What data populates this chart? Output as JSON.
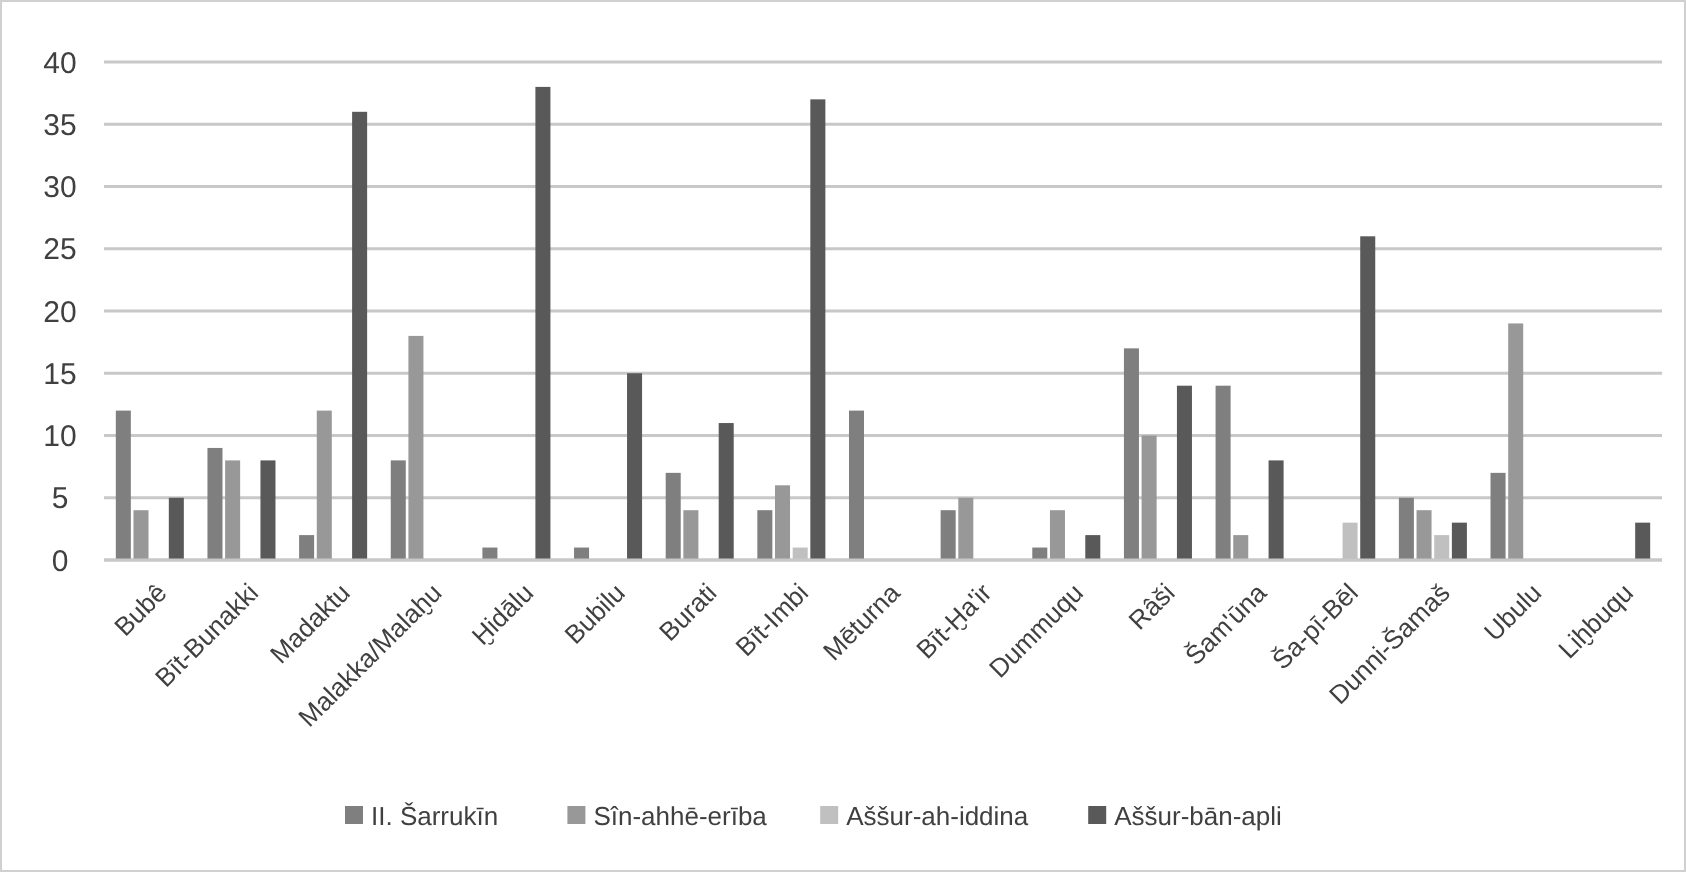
{
  "chart_data": {
    "type": "bar",
    "categories": [
      "Bubê",
      "Bīt-Bunakki",
      "Madaktu",
      "Malakka/Malaḫu",
      "Ḫidālu",
      "Bubilu",
      "Burati",
      "Bīt-Imbi",
      "Mēturna",
      "Bīt-Ḫa'ir",
      "Dummuqu",
      "Râši",
      "Šam'ūna",
      "Ša-pī-Bēl",
      "Dunni-Šamaš",
      "Ubulu",
      "Liḫbuqu"
    ],
    "series": [
      {
        "name": "II. Šarrukīn",
        "color": "#7f7f7f",
        "values": [
          12,
          9,
          2,
          8,
          1,
          1,
          7,
          4,
          12,
          4,
          1,
          17,
          14,
          0,
          5,
          7,
          0
        ]
      },
      {
        "name": "Sîn-ahhē-erība",
        "color": "#989898",
        "values": [
          4,
          8,
          12,
          18,
          0,
          0,
          4,
          6,
          0,
          5,
          4,
          10,
          2,
          0,
          4,
          19,
          0
        ]
      },
      {
        "name": "Aššur-ah-iddina",
        "color": "#c0c0c0",
        "values": [
          0,
          0,
          0,
          0,
          0,
          0,
          0,
          1,
          0,
          0,
          0,
          0,
          0,
          3,
          2,
          0,
          0
        ]
      },
      {
        "name": "Aššur-bān-apli",
        "color": "#595959",
        "values": [
          5,
          8,
          36,
          0,
          38,
          15,
          11,
          37,
          0,
          0,
          2,
          14,
          8,
          26,
          3,
          0,
          3
        ]
      }
    ],
    "ylim": [
      0,
      40
    ],
    "yticks": [
      0,
      5,
      10,
      15,
      20,
      25,
      30,
      35,
      40
    ],
    "grid": "y",
    "legend": "bottom"
  }
}
